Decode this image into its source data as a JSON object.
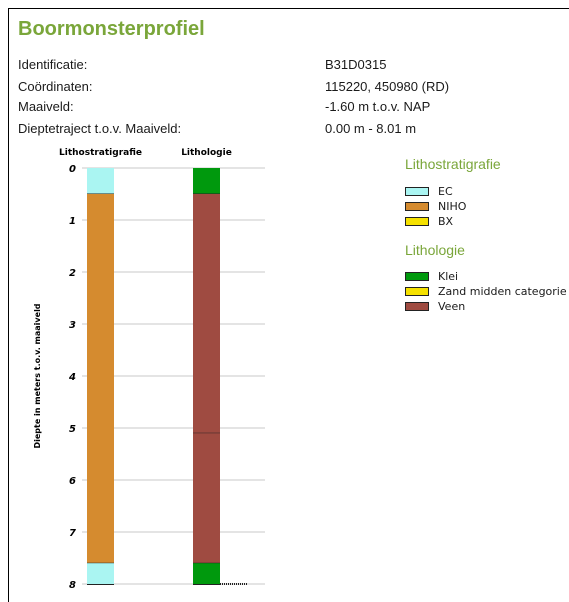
{
  "title": "Boormonsterprofiel",
  "info": [
    {
      "label": "Identificatie:",
      "value": "B31D0315"
    },
    {
      "label": "Coördinaten:",
      "value": "115220, 450980 (RD)"
    },
    {
      "label": "Maaiveld:",
      "value": "-1.60 m t.o.v. NAP"
    },
    {
      "label": "Dieptetraject t.o.v. Maaiveld:",
      "value": "0.00 m - 8.01 m"
    }
  ],
  "chart_data": {
    "type": "bar",
    "ylabel": "Diepte in meters t.o.v. maaiveld",
    "ylim": [
      0,
      8
    ],
    "yticks": [
      "0",
      "1",
      "2",
      "3",
      "4",
      "5",
      "6",
      "7",
      "8"
    ],
    "columns": [
      {
        "name": "Lithostratigrafie",
        "layers": [
          {
            "top": 0.0,
            "bottom": 0.5,
            "unit": "EC"
          },
          {
            "top": 0.5,
            "bottom": 7.6,
            "unit": "NIHO"
          },
          {
            "top": 7.6,
            "bottom": 8.01,
            "unit": "EC"
          }
        ]
      },
      {
        "name": "Lithologie",
        "layers": [
          {
            "top": 0.0,
            "bottom": 0.5,
            "unit": "Klei"
          },
          {
            "top": 0.5,
            "bottom": 5.1,
            "unit": "Veen"
          },
          {
            "top": 5.1,
            "bottom": 7.6,
            "unit": "Veen"
          },
          {
            "top": 7.6,
            "bottom": 8.01,
            "unit": "Klei"
          }
        ]
      }
    ]
  },
  "legends": [
    {
      "title": "Lithostratigrafie",
      "items": [
        {
          "label": "EC",
          "color": "#aaf5f2"
        },
        {
          "label": "NIHO",
          "color": "#d58b2f"
        },
        {
          "label": "BX",
          "color": "#f5e100"
        }
      ]
    },
    {
      "title": "Lithologie",
      "items": [
        {
          "label": "Klei",
          "color": "#00990d"
        },
        {
          "label": "Zand midden categorie",
          "color": "#f5e100"
        },
        {
          "label": "Veen",
          "color": "#9f4b41"
        }
      ]
    }
  ]
}
